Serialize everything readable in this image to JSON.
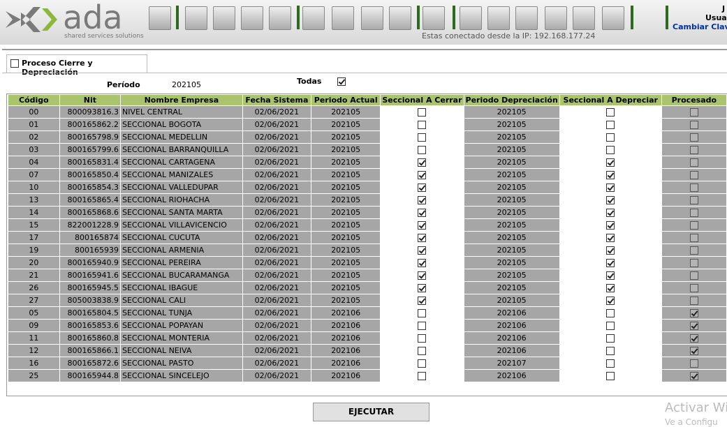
{
  "header": {
    "logo": "ada",
    "tagline": "shared services solutions",
    "ip_notice": "Estas conectado desde la IP: 192.168.177.24",
    "user_initial": "J",
    "user_label": "Usua",
    "change_password": "Cambiar Clave"
  },
  "tab": {
    "title": "Proceso Cierre y Depreciación"
  },
  "filters": {
    "period_label": "Período",
    "period_value": "202105",
    "all_label": "Todas",
    "all_checked": true
  },
  "table": {
    "columns": [
      "Código",
      "Nit",
      "Nombre Empresa",
      "Fecha Sistema",
      "Periodo Actual",
      "Seccional A Cerrar",
      "Periodo Depreciación",
      "Seccional A Depreciar",
      "Procesado"
    ],
    "rows": [
      [
        "00",
        "800093816.3",
        "NIVEL CENTRAL",
        "02/06/2021",
        "202105",
        false,
        "202105",
        false,
        false
      ],
      [
        "01",
        "800165862.2",
        "SECCIONAL BOGOTA",
        "02/06/2021",
        "202105",
        false,
        "202105",
        false,
        false
      ],
      [
        "02",
        "800165798.9",
        "SECCIONAL MEDELLIN",
        "02/06/2021",
        "202105",
        false,
        "202105",
        false,
        false
      ],
      [
        "03",
        "800165799.6",
        "SECCIONAL BARRANQUILLA",
        "02/06/2021",
        "202105",
        false,
        "202105",
        false,
        false
      ],
      [
        "04",
        "800165831.4",
        "SECCIONAL CARTAGENA",
        "02/06/2021",
        "202105",
        true,
        "202105",
        true,
        false
      ],
      [
        "07",
        "800165850.4",
        "SECCIONAL MANIZALES",
        "02/06/2021",
        "202105",
        true,
        "202105",
        true,
        false
      ],
      [
        "10",
        "800165854.3",
        "SECCIONAL VALLEDUPAR",
        "02/06/2021",
        "202105",
        true,
        "202105",
        true,
        false
      ],
      [
        "13",
        "800165865.4",
        "SECCIONAL RIOHACHA",
        "02/06/2021",
        "202105",
        true,
        "202105",
        true,
        false
      ],
      [
        "14",
        "800165868.6",
        "SECCIONAL SANTA MARTA",
        "02/06/2021",
        "202105",
        true,
        "202105",
        true,
        false
      ],
      [
        "15",
        "822001228.9",
        "SECCIONAL VILLAVICENCIO",
        "02/06/2021",
        "202105",
        true,
        "202105",
        true,
        false
      ],
      [
        "17",
        "800165874",
        "SECCIONAL CUCUTA",
        "02/06/2021",
        "202105",
        true,
        "202105",
        true,
        false
      ],
      [
        "19",
        "800165939",
        "SECCIONAL ARMENIA",
        "02/06/2021",
        "202105",
        true,
        "202105",
        true,
        false
      ],
      [
        "20",
        "800165940.9",
        "SECCIONAL PEREIRA",
        "02/06/2021",
        "202105",
        true,
        "202105",
        true,
        false
      ],
      [
        "21",
        "800165941.6",
        "SECCIONAL BUCARAMANGA",
        "02/06/2021",
        "202105",
        true,
        "202105",
        true,
        false
      ],
      [
        "26",
        "800165945.5",
        "SECCIONAL IBAGUE",
        "02/06/2021",
        "202105",
        true,
        "202105",
        true,
        false
      ],
      [
        "27",
        "805003838.9",
        "SECCIONAL CALI",
        "02/06/2021",
        "202105",
        true,
        "202105",
        true,
        false
      ],
      [
        "05",
        "800165804.5",
        "SECCIONAL TUNJA",
        "02/06/2021",
        "202106",
        false,
        "202106",
        false,
        true
      ],
      [
        "09",
        "800165853.6",
        "SECCIONAL POPAYAN",
        "02/06/2021",
        "202106",
        false,
        "202106",
        false,
        true
      ],
      [
        "11",
        "800165860.8",
        "SECCIONAL MONTERIA",
        "02/06/2021",
        "202106",
        false,
        "202106",
        false,
        true
      ],
      [
        "12",
        "800165866.1",
        "SECCIONAL NEIVA",
        "02/06/2021",
        "202106",
        false,
        "202106",
        false,
        true
      ],
      [
        "16",
        "800165872.6",
        "SECCIONAL PASTO",
        "02/06/2021",
        "202106",
        false,
        "202107",
        false,
        false
      ],
      [
        "25",
        "800165944.8",
        "SECCIONAL SINCELEJO",
        "02/06/2021",
        "202106",
        false,
        "202106",
        false,
        true
      ]
    ]
  },
  "button": "EJECUTAR",
  "watermark": {
    "line1": "Activar Wi",
    "line2": "Ve a Configu"
  }
}
